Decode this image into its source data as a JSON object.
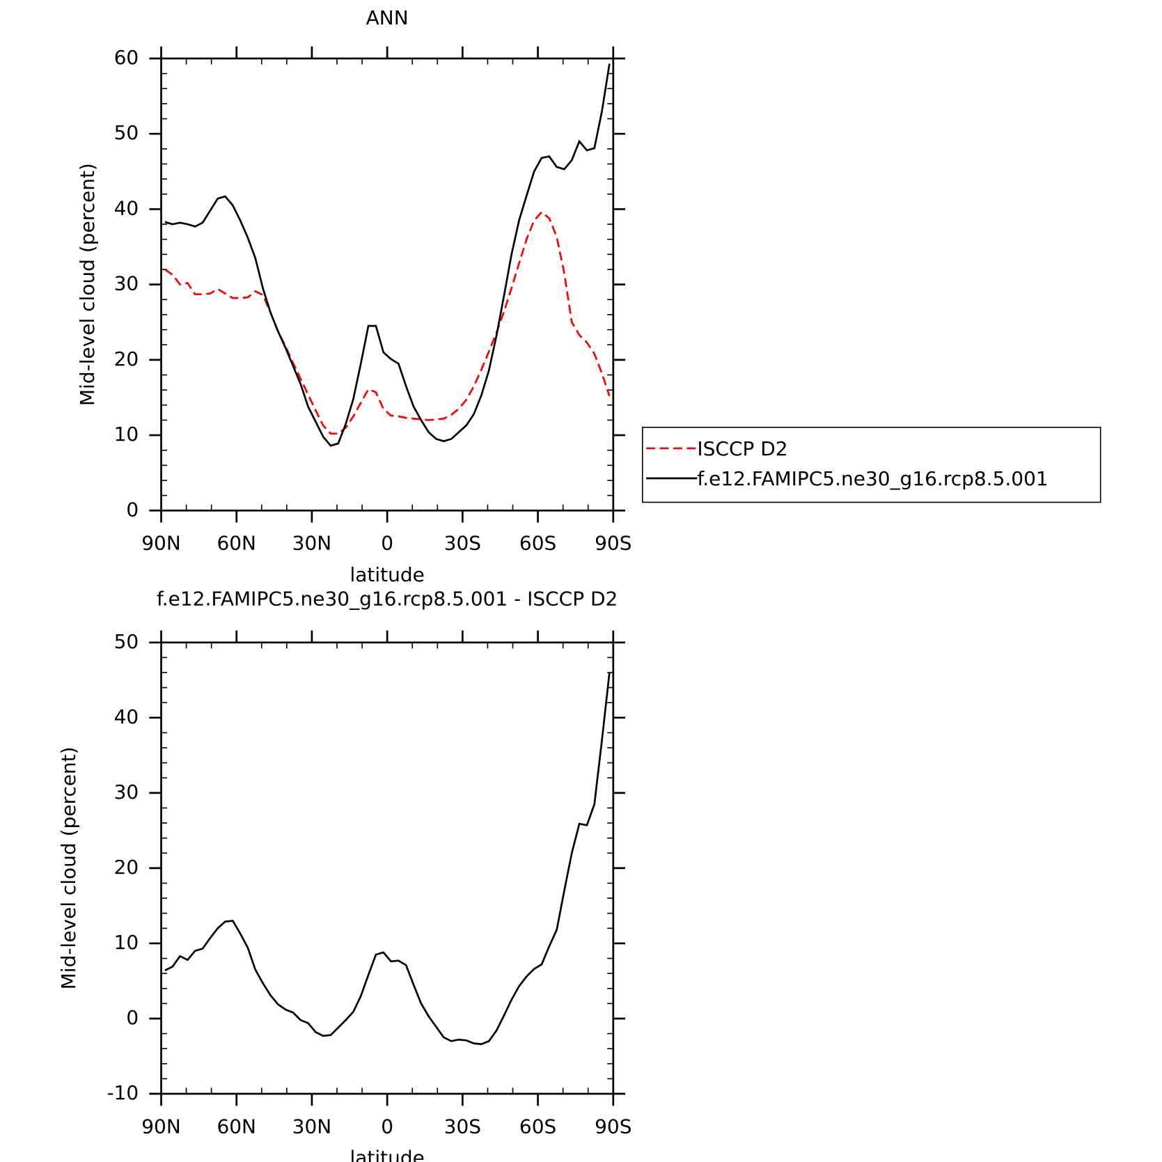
{
  "chart_data": [
    {
      "type": "line",
      "title": "ANN",
      "xlabel": "latitude",
      "ylabel": "Mid-level cloud (percent)",
      "x": [
        88.5,
        85.5,
        82.5,
        79.5,
        76.5,
        73.5,
        70.5,
        67.5,
        64.5,
        61.5,
        58.5,
        55.5,
        52.5,
        49.5,
        46.5,
        43.5,
        40.5,
        37.5,
        34.5,
        31.5,
        28.5,
        25.5,
        22.5,
        19.5,
        16.5,
        13.5,
        10.5,
        7.5,
        4.5,
        1.5,
        -1.5,
        -4.5,
        -7.5,
        -10.5,
        -13.5,
        -16.5,
        -19.5,
        -22.5,
        -25.5,
        -28.5,
        -31.5,
        -34.5,
        -37.5,
        -40.5,
        -43.5,
        -46.5,
        -49.5,
        -52.5,
        -55.5,
        -58.5,
        -61.5,
        -64.5,
        -67.5,
        -70.5,
        -73.5,
        -76.5,
        -79.5,
        -82.5,
        -85.5,
        -88.5
      ],
      "series": [
        {
          "name": "ISCCP D2",
          "color": "#ff0000",
          "linestyle": "dashed",
          "values": [
            32,
            31.3,
            30,
            30.2,
            28.7,
            28.7,
            28.8,
            29.4,
            28.8,
            28.2,
            28.2,
            28.3,
            29.1,
            28.6,
            26.3,
            23.8,
            21.8,
            19.6,
            17.5,
            15.4,
            13.3,
            11.3,
            10.2,
            10.2,
            11,
            12.5,
            14.3,
            16.1,
            15.7,
            13.5,
            12.6,
            12.5,
            12.3,
            12.2,
            12.1,
            12,
            12.1,
            12.2,
            12.7,
            13.5,
            14.7,
            16.5,
            18.7,
            21.1,
            23.6,
            26.4,
            29.5,
            32.8,
            36,
            38.5,
            39.6,
            38.8,
            36.3,
            31.5,
            25,
            23.3,
            22.3,
            20.8,
            18.2,
            15.2
          ]
        },
        {
          "name": "f.e12.FAMIPC5.ne30_g16.rcp8.5.001",
          "color": "#000000",
          "linestyle": "solid",
          "values": [
            38.3,
            38,
            38.2,
            38,
            37.7,
            38.2,
            39.8,
            41.4,
            41.7,
            40.5,
            38.5,
            36.2,
            33.5,
            29.5,
            26.3,
            23.8,
            21.6,
            19.2,
            16.8,
            13.8,
            11.8,
            9.8,
            8.6,
            8.9,
            11.5,
            14.8,
            19.5,
            24.5,
            24.5,
            21,
            20.1,
            19.5,
            16.5,
            13.8,
            12,
            10.4,
            9.5,
            9.2,
            9.5,
            10.4,
            11.3,
            12.8,
            15.3,
            18.6,
            23.2,
            28.5,
            34,
            38.5,
            41.8,
            45,
            46.8,
            47,
            45.6,
            45.3,
            46.5,
            49,
            47.8,
            48.1,
            53,
            59.3
          ]
        }
      ],
      "xlim": [
        90,
        -90
      ],
      "xticks": [
        {
          "value": 90,
          "label": "90N"
        },
        {
          "value": 60,
          "label": "60N"
        },
        {
          "value": 30,
          "label": "30N"
        },
        0,
        {
          "value": -30,
          "label": "30S"
        },
        {
          "value": -60,
          "label": "60S"
        },
        {
          "value": -90,
          "label": "90S"
        }
      ],
      "ylim": [
        0,
        60
      ],
      "yticks": [
        0,
        10,
        20,
        30,
        40,
        50,
        60
      ],
      "legend": "right"
    },
    {
      "type": "line",
      "title": "f.e12.FAMIPC5.ne30_g16.rcp8.5.001 - ISCCP D2",
      "xlabel": "latitude",
      "ylabel": "Mid-level cloud (percent)",
      "x": [
        88.5,
        85.5,
        82.5,
        79.5,
        76.5,
        73.5,
        70.5,
        67.5,
        64.5,
        61.5,
        58.5,
        55.5,
        52.5,
        49.5,
        46.5,
        43.5,
        40.5,
        37.5,
        34.5,
        31.5,
        28.5,
        25.5,
        22.5,
        19.5,
        16.5,
        13.5,
        10.5,
        7.5,
        4.5,
        1.5,
        -1.5,
        -4.5,
        -7.5,
        -10.5,
        -13.5,
        -16.5,
        -19.5,
        -22.5,
        -25.5,
        -28.5,
        -31.5,
        -34.5,
        -37.5,
        -40.5,
        -43.5,
        -46.5,
        -49.5,
        -52.5,
        -55.5,
        -58.5,
        -61.5,
        -64.5,
        -67.5,
        -70.5,
        -73.5,
        -76.5,
        -79.5,
        -82.5,
        -85.5,
        -88.5
      ],
      "color": "#000000",
      "values": [
        6.4,
        6.9,
        8.3,
        7.8,
        9,
        9.3,
        10.7,
        12,
        12.9,
        13,
        11.3,
        9.4,
        6.5,
        4.7,
        3.1,
        1.9,
        1.2,
        0.8,
        -0.2,
        -0.6,
        -1.8,
        -2.3,
        -2.2,
        -1.2,
        -0.2,
        0.9,
        3,
        5.8,
        8.5,
        8.8,
        7.6,
        7.7,
        7.1,
        4.5,
        2,
        0.3,
        -1.1,
        -2.5,
        -3,
        -2.8,
        -2.9,
        -3.3,
        -3.4,
        -3,
        -1.6,
        0.4,
        2.5,
        4.3,
        5.6,
        6.6,
        7.2,
        9.6,
        11.8,
        17,
        22,
        25.9,
        25.7,
        28.5,
        37,
        46
      ],
      "xlim": [
        90,
        -90
      ],
      "xticks": [
        {
          "value": 90,
          "label": "90N"
        },
        {
          "value": 60,
          "label": "60N"
        },
        {
          "value": 30,
          "label": "30N"
        },
        0,
        {
          "value": -30,
          "label": "30S"
        },
        {
          "value": -60,
          "label": "60S"
        },
        {
          "value": -90,
          "label": "90S"
        }
      ],
      "ylim": [
        -10,
        50
      ],
      "yticks": [
        -10,
        0,
        10,
        20,
        30,
        40,
        50
      ]
    }
  ]
}
